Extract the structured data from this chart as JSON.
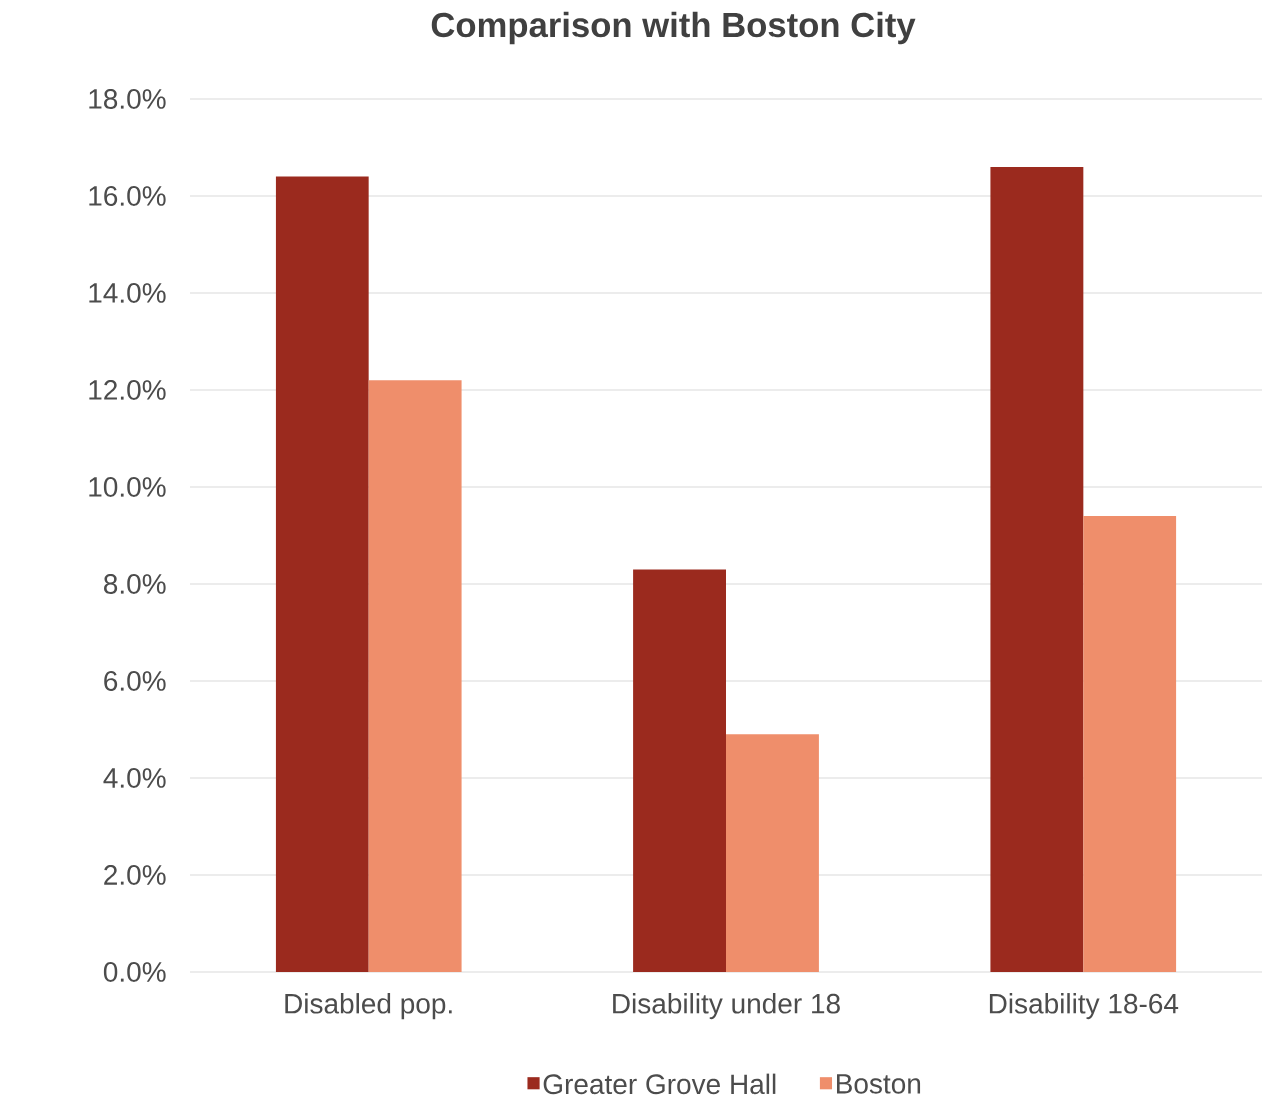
{
  "chart_data": {
    "type": "bar",
    "title": "Comparison with Boston City",
    "categories": [
      "Disabled pop.",
      "Disability under 18",
      "Disability 18-64"
    ],
    "series": [
      {
        "name": "Greater Grove Hall",
        "color": "#9b2a1e",
        "values": [
          16.4,
          8.3,
          16.6
        ]
      },
      {
        "name": "Boston",
        "color": "#ef8e6b",
        "values": [
          12.2,
          4.9,
          9.4
        ]
      }
    ],
    "ylim": [
      0,
      18
    ],
    "yticks": [
      {
        "value": 0,
        "label": "0.0%"
      },
      {
        "value": 2,
        "label": "2.0%"
      },
      {
        "value": 4,
        "label": "4.0%"
      },
      {
        "value": 6,
        "label": "6.0%"
      },
      {
        "value": 8,
        "label": "8.0%"
      },
      {
        "value": 10,
        "label": "10.0%"
      },
      {
        "value": 12,
        "label": "12.0%"
      },
      {
        "value": 14,
        "label": "14.0%"
      },
      {
        "value": 16,
        "label": "16.0%"
      },
      {
        "value": 18,
        "label": "18.0%"
      }
    ],
    "grid": "y",
    "legend": "bottom"
  }
}
